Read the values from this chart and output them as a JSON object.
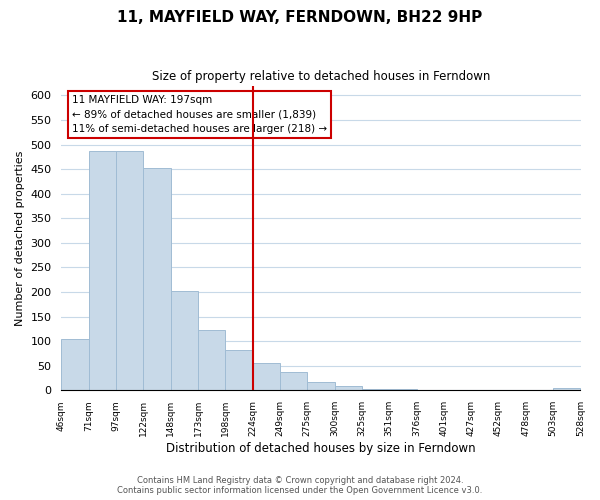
{
  "title": "11, MAYFIELD WAY, FERNDOWN, BH22 9HP",
  "subtitle": "Size of property relative to detached houses in Ferndown",
  "xlabel": "Distribution of detached houses by size in Ferndown",
  "ylabel": "Number of detached properties",
  "bar_values": [
    105,
    487,
    487,
    452,
    202,
    122,
    83,
    56,
    37,
    16,
    9,
    3,
    3,
    1,
    1,
    0,
    0,
    0,
    5
  ],
  "bin_labels": [
    "46sqm",
    "71sqm",
    "97sqm",
    "122sqm",
    "148sqm",
    "173sqm",
    "198sqm",
    "224sqm",
    "249sqm",
    "275sqm",
    "300sqm",
    "325sqm",
    "351sqm",
    "376sqm",
    "401sqm",
    "427sqm",
    "452sqm",
    "478sqm",
    "503sqm",
    "528sqm"
  ],
  "bar_color": "#c8d9e8",
  "bar_edge_color": "#a0bcd4",
  "highlight_bar_idx": 6,
  "highlight_line_color": "#cc0000",
  "annotation_box_text": "11 MAYFIELD WAY: 197sqm\n← 89% of detached houses are smaller (1,839)\n11% of semi-detached houses are larger (218) →",
  "ylim": [
    0,
    620
  ],
  "yticks": [
    0,
    50,
    100,
    150,
    200,
    250,
    300,
    350,
    400,
    450,
    500,
    550,
    600
  ],
  "footer_text": "Contains HM Land Registry data © Crown copyright and database right 2024.\nContains public sector information licensed under the Open Government Licence v3.0.",
  "background_color": "#ffffff",
  "grid_color": "#c8d9e8"
}
